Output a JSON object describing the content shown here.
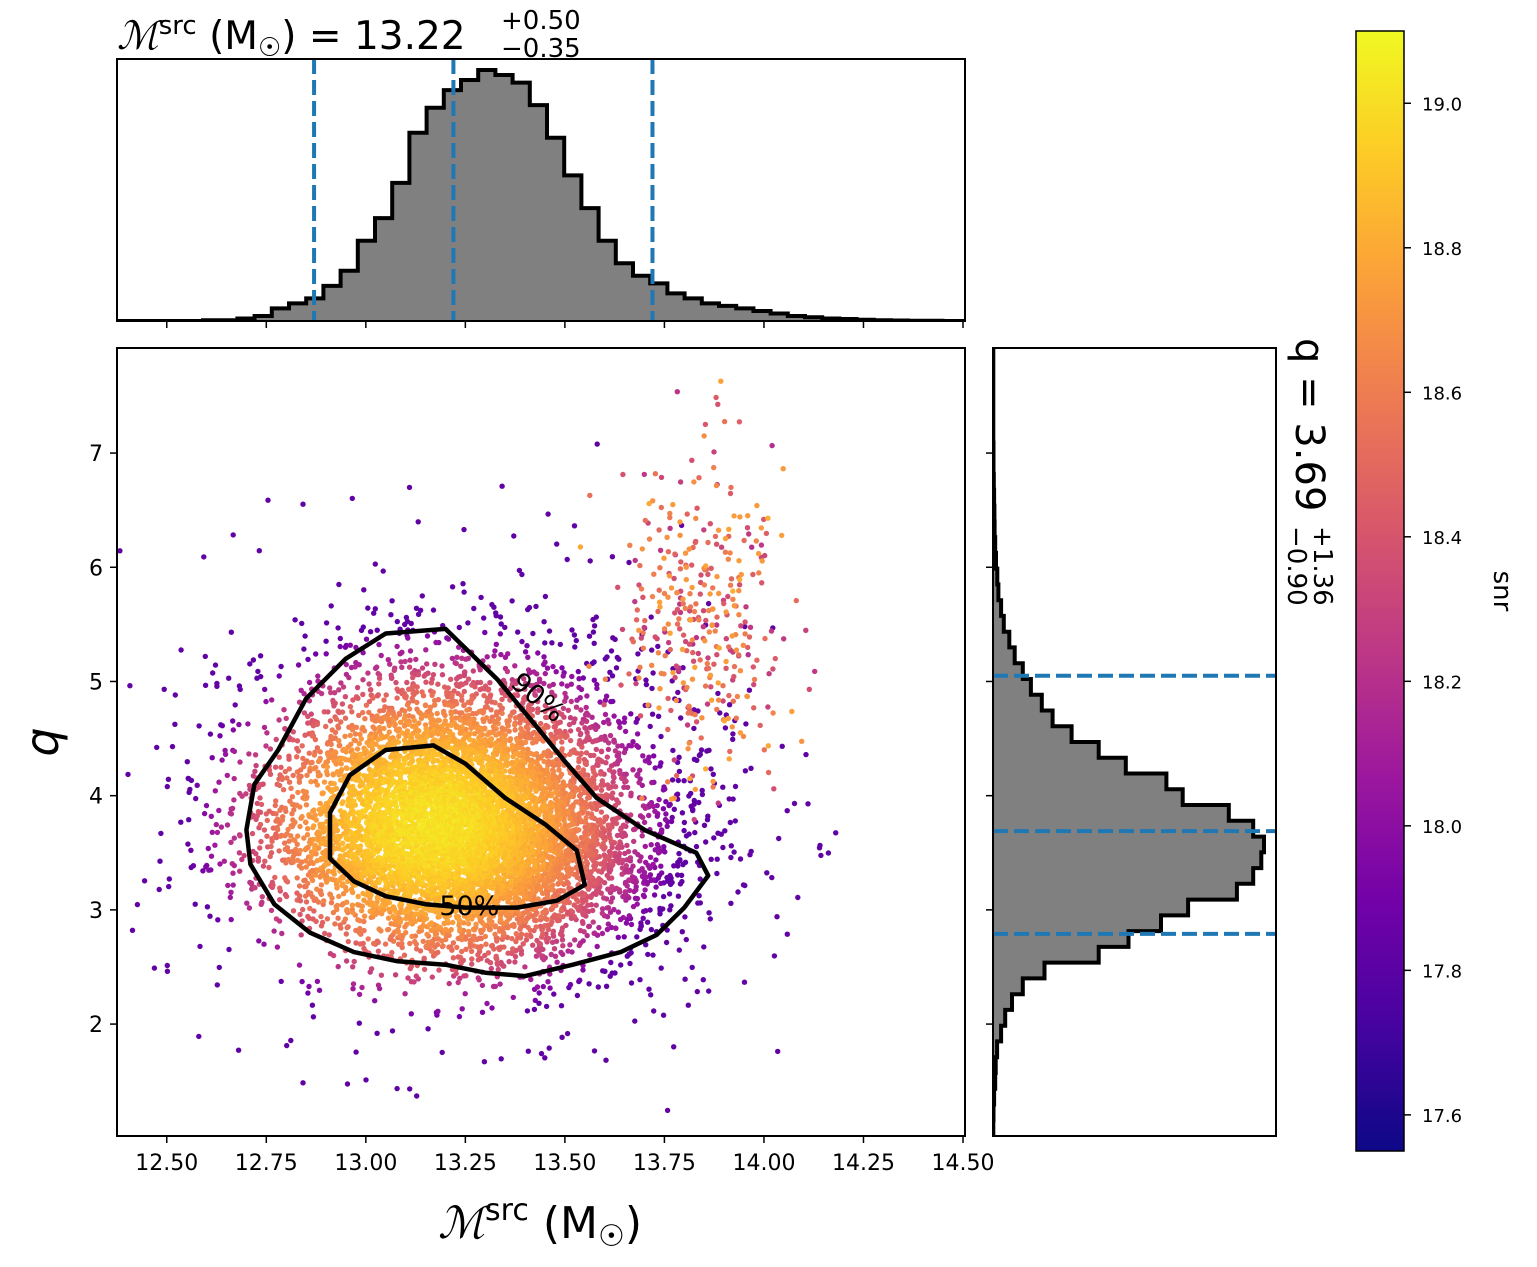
{
  "chart_data": {
    "type": "scatter",
    "main": {
      "xlabel": {
        "base": "ℳ",
        "sup": "src",
        "unit_open": " (M",
        "unit_sub": "☉",
        "unit_close": ")"
      },
      "ylabel": "q",
      "xlim": [
        12.375,
        14.505
      ],
      "ylim": [
        1.02,
        7.92
      ],
      "xticks": [
        12.5,
        12.75,
        13.0,
        13.25,
        13.5,
        13.75,
        14.0,
        14.25,
        14.5
      ],
      "xtick_labels": [
        "12.50",
        "12.75",
        "13.00",
        "13.25",
        "13.50",
        "13.75",
        "14.00",
        "14.25",
        "14.50"
      ],
      "yticks": [
        2,
        3,
        4,
        5,
        6,
        7
      ],
      "ytick_labels": [
        "2",
        "3",
        "4",
        "5",
        "6",
        "7"
      ],
      "grid": false,
      "scatter": {
        "n_points": 9000,
        "color_by": "snr",
        "core": {
          "mean_x": 13.25,
          "mean_y": 3.7,
          "sd_x": 0.21,
          "sd_y": 0.62,
          "correlation": -0.05
        },
        "secondary_cluster": {
          "mean_x": 13.85,
          "mean_y": 5.6,
          "sd_x": 0.1,
          "sd_y": 0.7
        }
      },
      "contours": [
        {
          "label": "50%",
          "points": [
            [
              12.91,
              3.45
            ],
            [
              12.97,
              3.25
            ],
            [
              13.05,
              3.12
            ],
            [
              13.15,
              3.05
            ],
            [
              13.25,
              3.02
            ],
            [
              13.38,
              3.02
            ],
            [
              13.48,
              3.08
            ],
            [
              13.55,
              3.22
            ],
            [
              13.53,
              3.52
            ],
            [
              13.45,
              3.75
            ],
            [
              13.35,
              3.98
            ],
            [
              13.25,
              4.28
            ],
            [
              13.17,
              4.44
            ],
            [
              13.05,
              4.4
            ],
            [
              12.96,
              4.18
            ],
            [
              12.91,
              3.85
            ]
          ]
        },
        {
          "label": "90%",
          "points": [
            [
              12.71,
              3.4
            ],
            [
              12.77,
              3.05
            ],
            [
              12.86,
              2.8
            ],
            [
              12.97,
              2.63
            ],
            [
              13.08,
              2.55
            ],
            [
              13.2,
              2.52
            ],
            [
              13.3,
              2.45
            ],
            [
              13.4,
              2.42
            ],
            [
              13.52,
              2.52
            ],
            [
              13.64,
              2.63
            ],
            [
              13.73,
              2.78
            ],
            [
              13.8,
              3.02
            ],
            [
              13.86,
              3.3
            ],
            [
              13.83,
              3.5
            ],
            [
              13.7,
              3.7
            ],
            [
              13.58,
              3.98
            ],
            [
              13.5,
              4.3
            ],
            [
              13.43,
              4.6
            ],
            [
              13.33,
              5.02
            ],
            [
              13.2,
              5.46
            ],
            [
              13.05,
              5.42
            ],
            [
              12.95,
              5.2
            ],
            [
              12.85,
              4.85
            ],
            [
              12.78,
              4.4
            ],
            [
              12.72,
              4.1
            ],
            [
              12.7,
              3.7
            ]
          ]
        }
      ],
      "contour_labels": [
        {
          "text": "90%",
          "x": 13.43,
          "y": 4.85,
          "rotation_deg": 40
        },
        {
          "text": "50%",
          "x": 13.26,
          "y": 3.02,
          "rotation_deg": 0
        }
      ]
    },
    "top_histogram": {
      "title": {
        "base": "ℳ",
        "sup": "src",
        "unit_open": " (M",
        "unit_sub": "☉",
        "unit_close": ") = 13.22",
        "plus": "+0.50",
        "minus": "−0.35"
      },
      "bin_start": 12.375,
      "bin_width": 0.0432,
      "counts": [
        0,
        0,
        0,
        0,
        0,
        0.003,
        0.003,
        0.01,
        0.02,
        0.05,
        0.07,
        0.09,
        0.14,
        0.2,
        0.32,
        0.41,
        0.55,
        0.75,
        0.85,
        0.92,
        0.96,
        1.0,
        0.98,
        0.95,
        0.86,
        0.73,
        0.58,
        0.45,
        0.32,
        0.23,
        0.18,
        0.15,
        0.11,
        0.09,
        0.07,
        0.06,
        0.05,
        0.04,
        0.03,
        0.02,
        0.015,
        0.01,
        0.008,
        0.005,
        0.003,
        0.002,
        0.001,
        0.001,
        0,
        0
      ],
      "quantile_lines": [
        12.87,
        13.22,
        13.72
      ],
      "xticks": [
        12.5,
        12.75,
        13.0,
        13.25,
        13.5,
        13.75,
        14.0,
        14.25,
        14.5
      ]
    },
    "right_histogram": {
      "title": {
        "base": "q = 3.69",
        "plus": "+1.36",
        "minus": "−0.90"
      },
      "bin_start": 1.02,
      "bin_width": 0.138,
      "counts": [
        0.001,
        0.002,
        0.004,
        0.008,
        0.01,
        0.015,
        0.03,
        0.045,
        0.07,
        0.11,
        0.19,
        0.39,
        0.5,
        0.62,
        0.72,
        0.9,
        0.96,
        0.99,
        1.0,
        0.96,
        0.87,
        0.7,
        0.64,
        0.49,
        0.39,
        0.29,
        0.22,
        0.18,
        0.14,
        0.11,
        0.08,
        0.06,
        0.04,
        0.03,
        0.02,
        0.016,
        0.011,
        0.008,
        0.006,
        0.005,
        0.004,
        0.003,
        0.002,
        0.002,
        0.001,
        0.001,
        0.001,
        0.001,
        0.001,
        0.001
      ],
      "quantile_lines": [
        2.79,
        3.69,
        5.05
      ],
      "yticks": [
        2,
        3,
        4,
        5,
        6,
        7
      ]
    },
    "colorbar": {
      "label": "snr",
      "colormap": "plasma",
      "range": [
        17.55,
        19.1
      ],
      "ticks": [
        17.6,
        17.8,
        18.0,
        18.2,
        18.4,
        18.6,
        18.8,
        19.0
      ],
      "tick_labels": [
        "17.6",
        "17.8",
        "18.0",
        "18.2",
        "18.4",
        "18.6",
        "18.8",
        "19.0"
      ]
    },
    "colors": {
      "histogram_fill": "#808080",
      "histogram_edge": "#000000",
      "quantile_line": "#1f77b4",
      "contour": "#000000",
      "plasma_stops": [
        "#0d0887",
        "#46039f",
        "#7201a8",
        "#9c179e",
        "#bd3786",
        "#d8576b",
        "#ed7953",
        "#fb9f3a",
        "#fdca26",
        "#f0f921"
      ]
    }
  }
}
